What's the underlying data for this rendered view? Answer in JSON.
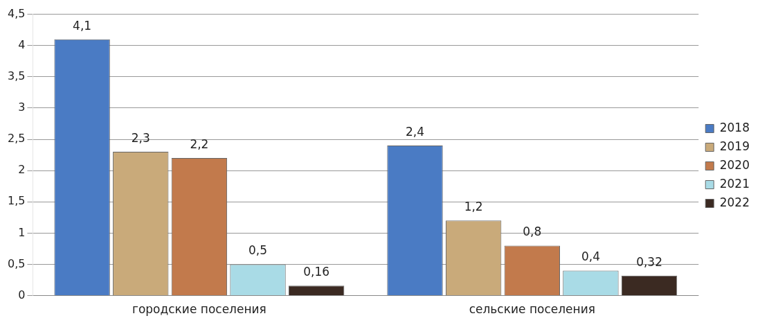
{
  "chart_data": {
    "type": "bar",
    "categories": [
      "городские поселения",
      "сельские поселения"
    ],
    "series": [
      {
        "name": "2018",
        "color": "#4a7bc4",
        "values": [
          4.1,
          2.4
        ],
        "value_labels": [
          "4,1",
          "2,4"
        ]
      },
      {
        "name": "2019",
        "color": "#c9aa7a",
        "values": [
          2.3,
          1.2
        ],
        "value_labels": [
          "2,3",
          "1,2"
        ]
      },
      {
        "name": "2020",
        "color": "#c27a4c",
        "values": [
          2.2,
          0.8
        ],
        "value_labels": [
          "2,2",
          "0,8"
        ]
      },
      {
        "name": "2021",
        "color": "#a9dbe6",
        "values": [
          0.5,
          0.4
        ],
        "value_labels": [
          "0,5",
          "0,4"
        ]
      },
      {
        "name": "2022",
        "color": "#3b2a22",
        "values": [
          0.16,
          0.32
        ],
        "value_labels": [
          "0,16",
          "0,32"
        ]
      }
    ],
    "ylim": [
      0,
      4.5
    ],
    "yticks": [
      0,
      {
        "value": 0.5,
        "label": "0,5"
      },
      1,
      {
        "value": 1.5,
        "label": "1,5"
      },
      2,
      {
        "value": 2.5,
        "label": "2,5"
      },
      3,
      {
        "value": 3.5,
        "label": "3,5"
      },
      4,
      {
        "value": 4.5,
        "label": "4,5"
      }
    ],
    "grid": "y",
    "legend": "right"
  }
}
